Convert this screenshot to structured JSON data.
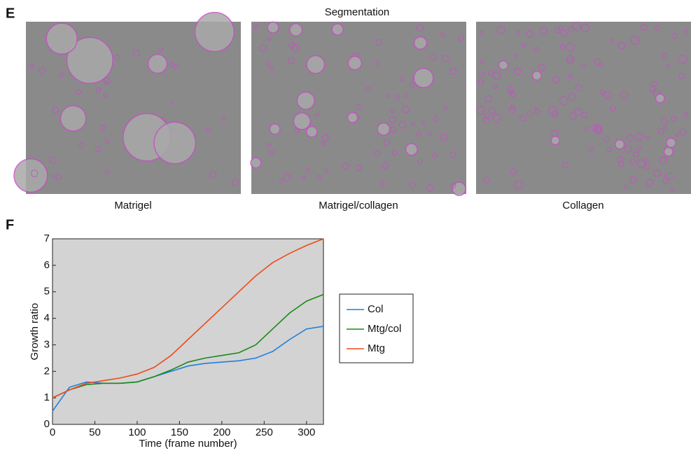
{
  "figure": {
    "panel_e_label": "E",
    "panel_e_title": "Segmentation",
    "image_captions": [
      "Matrigel",
      "Matrigel/collagen",
      "Collagen"
    ],
    "panel_f_label": "F"
  },
  "chart_data": {
    "type": "line",
    "x_label": "Time (frame number)",
    "y_label": "Growth ratio",
    "x": [
      0,
      20,
      40,
      60,
      80,
      100,
      120,
      140,
      160,
      180,
      200,
      220,
      240,
      260,
      280,
      300,
      320
    ],
    "series": [
      {
        "name": "Col",
        "color": "#1f7fe0",
        "values": [
          0.5,
          1.4,
          1.6,
          1.55,
          1.55,
          1.6,
          1.8,
          2.0,
          2.2,
          2.3,
          2.35,
          2.4,
          2.5,
          2.75,
          3.2,
          3.6,
          3.7
        ]
      },
      {
        "name": "Mtg/col",
        "color": "#1a8a1a",
        "values": [
          1.0,
          1.3,
          1.5,
          1.55,
          1.55,
          1.6,
          1.8,
          2.05,
          2.35,
          2.5,
          2.6,
          2.7,
          3.0,
          3.6,
          4.2,
          4.65,
          4.9
        ]
      },
      {
        "name": "Mtg",
        "color": "#f04a1a",
        "values": [
          1.0,
          1.3,
          1.55,
          1.65,
          1.75,
          1.9,
          2.15,
          2.6,
          3.2,
          3.8,
          4.4,
          5.0,
          5.6,
          6.1,
          6.45,
          6.75,
          7.0
        ]
      }
    ],
    "xlim": [
      0,
      320
    ],
    "xticks": [
      0,
      50,
      100,
      150,
      200,
      250,
      300
    ],
    "ylim": [
      0,
      7
    ],
    "yticks": [
      0,
      1,
      2,
      3,
      4,
      5,
      6,
      7
    ],
    "legend": "outside-right"
  }
}
